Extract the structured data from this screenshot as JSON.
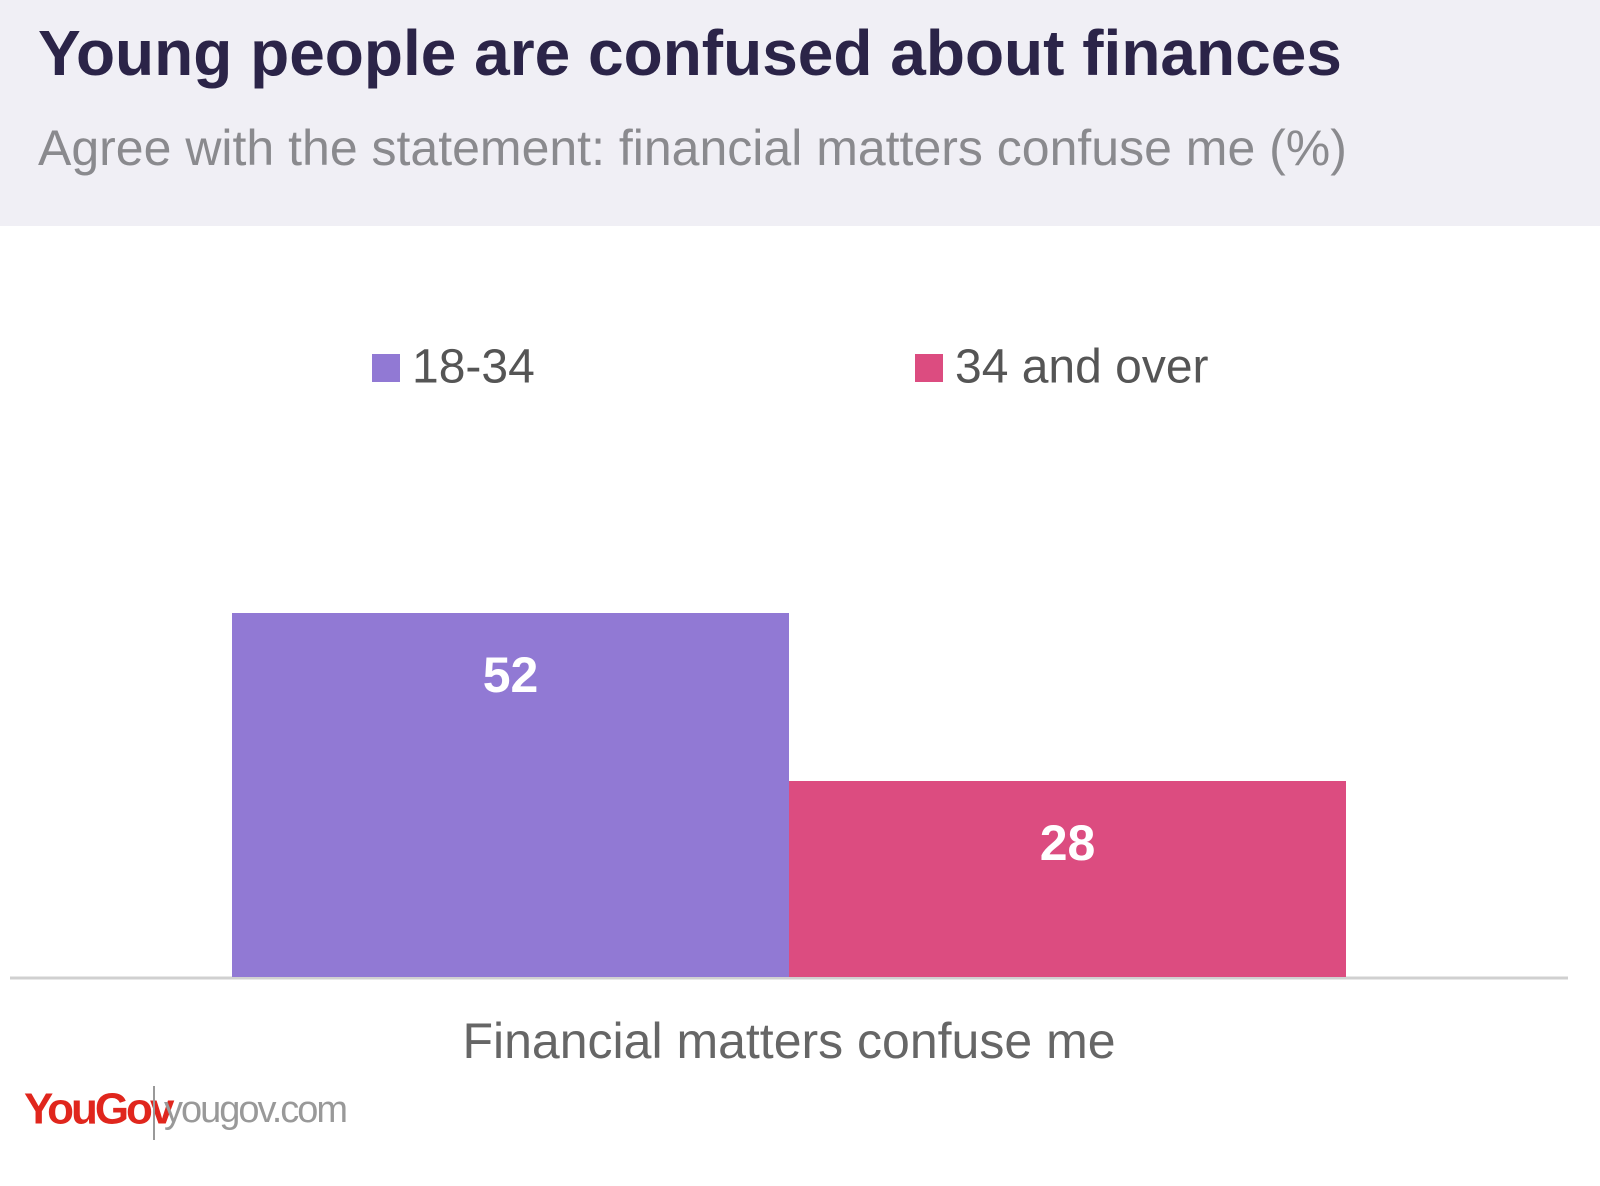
{
  "chart_data": {
    "type": "bar",
    "title": "Young people are confused about finances",
    "subtitle": "Agree with the statement: financial matters confuse me (%)",
    "categories": [
      "Financial matters confuse me"
    ],
    "series": [
      {
        "name": "18-34",
        "color": "#9179d4",
        "values": [
          52
        ]
      },
      {
        "name": "34 and over",
        "color": "#dc4c80",
        "values": [
          28
        ]
      }
    ]
  },
  "footer": {
    "brand": "YouGov",
    "url": "yougov.com"
  }
}
